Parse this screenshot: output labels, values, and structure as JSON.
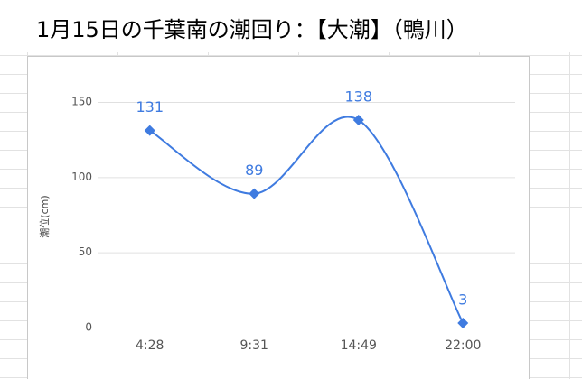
{
  "chart_data": {
    "type": "line",
    "title": "1月15日の千葉南の潮回り：【大潮】（鴨川）",
    "y_label": "潮位(cm)",
    "categories": [
      "4:28",
      "9:31",
      "14:49",
      "22:00"
    ],
    "values": [
      131,
      89,
      138,
      3
    ],
    "color": "#3f7be0",
    "ylim": [
      0,
      150
    ],
    "yticks": [
      0,
      50,
      100,
      150
    ],
    "grid": true,
    "smooth": true,
    "data_labels": true
  }
}
